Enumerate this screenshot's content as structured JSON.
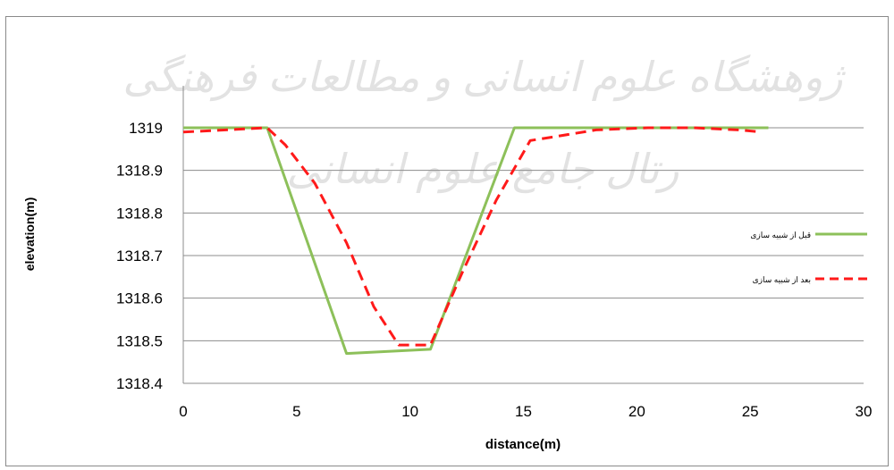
{
  "chart_data": {
    "type": "line",
    "xlabel": "distance(m)",
    "ylabel": "elevation(m)",
    "xlim": [
      0,
      30
    ],
    "ylim": [
      1318.4,
      1319.0
    ],
    "xticks": [
      0,
      5,
      10,
      15,
      20,
      25,
      30
    ],
    "yticks": [
      1318.4,
      1318.5,
      1318.6,
      1318.7,
      1318.8,
      1318.9,
      1319.0
    ],
    "ytick_labels": [
      "1318.4",
      "1318.5",
      "1318.6",
      "1318.7",
      "1318.8",
      "1318.9",
      "1319"
    ],
    "grid": "horizontal",
    "legend_placement": "right",
    "series": [
      {
        "name": "قبل از شبیه سازی",
        "color": "#8dc05a",
        "style": "solid",
        "x": [
          0,
          3.7,
          7.2,
          10.9,
          14.6,
          18,
          22,
          25.8
        ],
        "y": [
          1319.0,
          1319.0,
          1318.47,
          1318.48,
          1319.0,
          1319.0,
          1319.0,
          1319.0
        ]
      },
      {
        "name": "بعد از شبیه سازی",
        "color": "#ff1a1a",
        "style": "dashed",
        "x": [
          0,
          3.7,
          4.5,
          5.8,
          7.2,
          8.4,
          9.5,
          10.9,
          12.3,
          13.8,
          15.3,
          16.5,
          18.2,
          20.5,
          22.5,
          24.5,
          25.5
        ],
        "y": [
          1318.99,
          1319.0,
          1318.96,
          1318.87,
          1318.73,
          1318.58,
          1318.49,
          1318.49,
          1318.66,
          1318.83,
          1318.97,
          1318.98,
          1318.995,
          1319.0,
          1319.0,
          1318.995,
          1318.99
        ]
      }
    ]
  },
  "watermark": {
    "line1": "ژوهشگاه علوم انسانی و مطالعات فرهنگی",
    "line2": "رتال جامع علوم انسانی"
  }
}
